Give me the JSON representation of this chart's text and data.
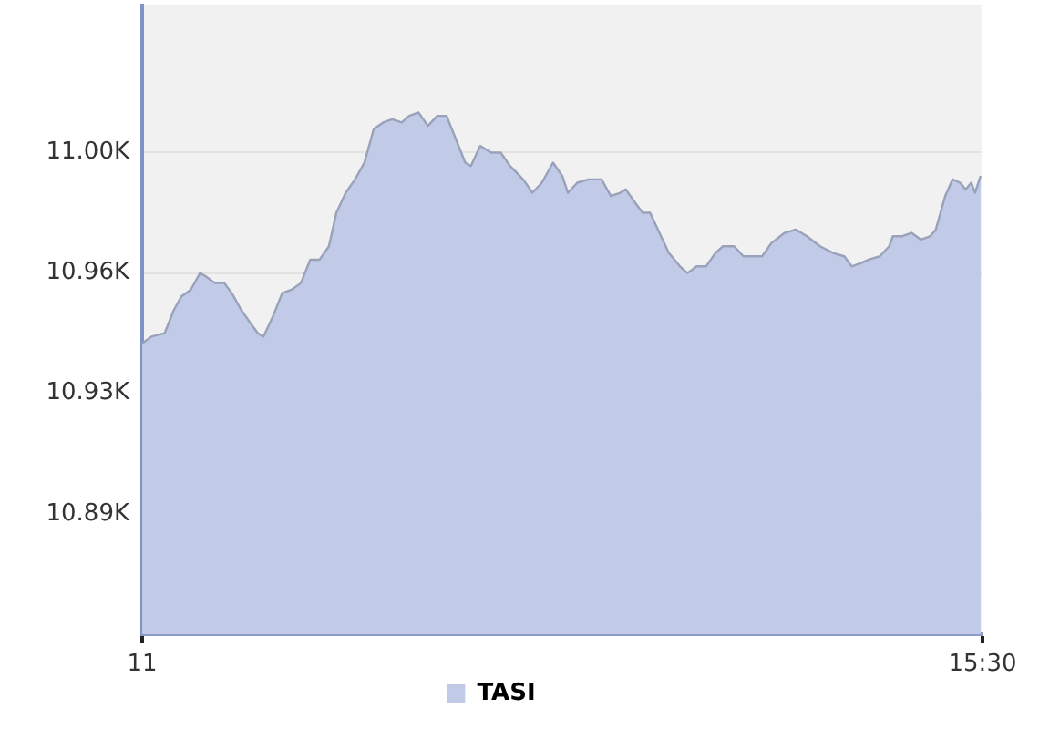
{
  "chart_data": {
    "type": "area",
    "x": [
      11,
      11.05,
      11.12,
      11.17,
      11.21,
      11.26,
      11.31,
      11.34,
      11.39,
      11.44,
      11.48,
      11.53,
      11.58,
      11.62,
      11.65,
      11.7,
      11.75,
      11.8,
      11.85,
      11.9,
      11.95,
      12,
      12.04,
      12.09,
      12.14,
      12.19,
      12.24,
      12.29,
      12.34,
      12.39,
      12.43,
      12.48,
      12.53,
      12.58,
      12.63,
      12.68,
      12.73,
      12.76,
      12.81,
      12.87,
      12.92,
      12.97,
      13.04,
      13.09,
      13.14,
      13.2,
      13.25,
      13.28,
      13.33,
      13.39,
      13.46,
      13.51,
      13.56,
      13.59,
      13.64,
      13.68,
      13.72,
      13.77,
      13.82,
      13.88,
      13.92,
      13.97,
      14.02,
      14.07,
      14.11,
      14.17,
      14.22,
      14.27,
      14.32,
      14.37,
      14.44,
      14.5,
      14.56,
      14.63,
      14.7,
      14.76,
      14.8,
      14.85,
      14.89,
      14.95,
      15,
      15.02,
      15.07,
      15.12,
      15.17,
      15.22,
      15.25,
      15.3,
      15.34,
      15.38,
      15.41,
      15.44,
      15.46,
      15.49
    ],
    "series": [
      {
        "name": "TASI",
        "color": "#c1cae7",
        "values": [
          10943,
          10945,
          10946,
          10953,
          10957,
          10959,
          10964,
          10963,
          10961,
          10961,
          10958,
          10953,
          10949,
          10946,
          10945,
          10951,
          10958,
          10959,
          10961,
          10968,
          10968,
          10972,
          10982,
          10988,
          10992,
          10997,
          11007,
          11009,
          11010,
          11009,
          11011,
          11012,
          11008,
          11011,
          11011,
          11004,
          10997,
          10996,
          11002,
          11000,
          11000,
          10996,
          10992,
          10988,
          10991,
          10997,
          10993,
          10988,
          10991,
          10992,
          10992,
          10987,
          10988,
          10989,
          10985,
          10982,
          10982,
          10976,
          10970,
          10966,
          10964,
          10966,
          10966,
          10970,
          10972,
          10972,
          10969,
          10969,
          10969,
          10973,
          10976,
          10977,
          10975,
          10972,
          10970,
          10969,
          10966,
          10967,
          10968,
          10969,
          10972,
          10975,
          10975,
          10976,
          10974,
          10975,
          10977,
          10987,
          10992,
          10991,
          10989,
          10991,
          10988,
          10993
        ]
      }
    ],
    "xlim": [
      11,
      15.5
    ],
    "xticks": [
      11,
      {
        "value": 15.5,
        "label": "15:30"
      }
    ],
    "ylim": [
      10856,
      11044
    ],
    "yticks": [
      {
        "value": 10892,
        "label": "10.89K"
      },
      {
        "value": 10928,
        "label": "10.93K"
      },
      {
        "value": 10964,
        "label": "10.96K"
      },
      {
        "value": 11000,
        "label": "11.00K"
      }
    ],
    "grid": "y",
    "legend": "bottom",
    "marker": "none"
  }
}
